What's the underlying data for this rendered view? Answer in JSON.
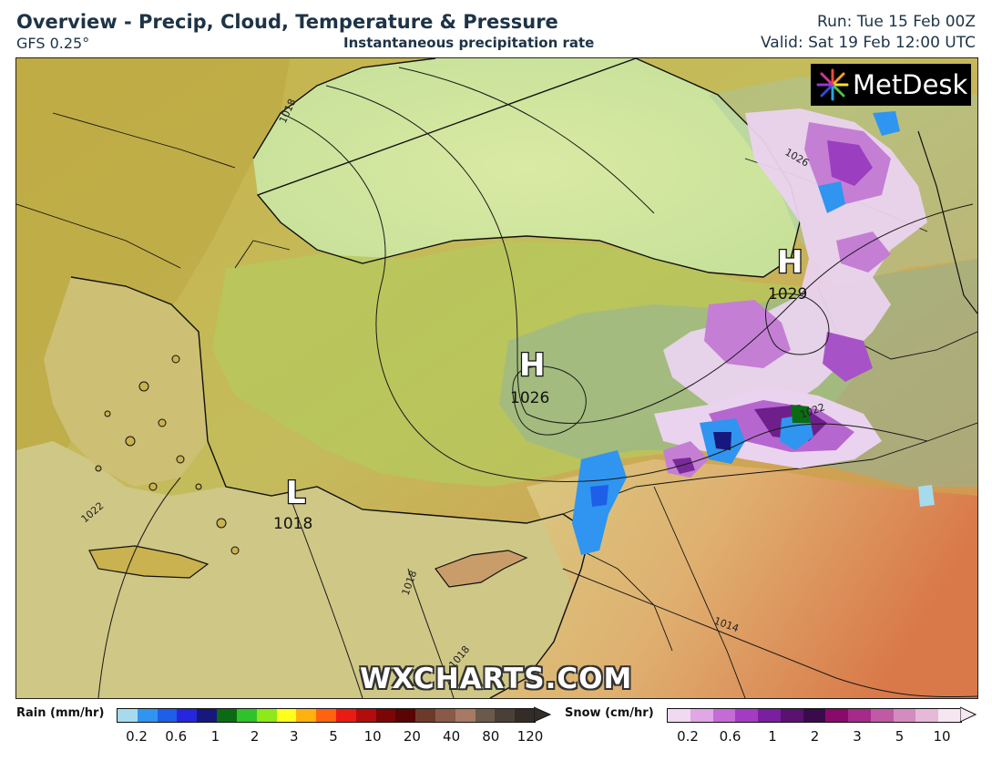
{
  "header": {
    "title": "Overview - Precip, Cloud, Temperature & Pressure",
    "model": "GFS 0.25°",
    "subtitle": "Instantaneous precipitation rate",
    "run": "Run: Tue 15 Feb 00Z",
    "valid": "Valid: Sat 19 Feb 12:00 UTC"
  },
  "map": {
    "pressure_centers": [
      {
        "type": "H",
        "value": "1026"
      },
      {
        "type": "H",
        "value": "1029"
      },
      {
        "type": "L",
        "value": "1018"
      }
    ],
    "isobar_labels": [
      "1018",
      "1026",
      "1022",
      "1022",
      "1018",
      "1018",
      "1014"
    ],
    "watermark": "WXCHARTS.COM",
    "logo": "MetDesk"
  },
  "legend": {
    "rain": {
      "label": "Rain (mm/hr)",
      "ticks": [
        "0.2",
        "0.6",
        "1",
        "2",
        "3",
        "5",
        "10",
        "20",
        "40",
        "80",
        "120"
      ],
      "colors": [
        "#a6dbee",
        "#2f95f0",
        "#1e5fe8",
        "#2626de",
        "#17187d",
        "#0b6b15",
        "#2fc22c",
        "#8ee81a",
        "#ffff1c",
        "#ffb20f",
        "#ff6310",
        "#ea1b14",
        "#b30c0c",
        "#7c0606",
        "#5a0404",
        "#6d3a2a",
        "#8a5a48",
        "#a67a64",
        "#6b5a4c",
        "#4b4038",
        "#332c28"
      ]
    },
    "snow": {
      "label": "Snow (cm/hr)",
      "ticks": [
        "0.2",
        "0.6",
        "1",
        "2",
        "3",
        "5",
        "10"
      ],
      "colors": [
        "#f2d9f2",
        "#e0a6e6",
        "#c46bd6",
        "#a33cc3",
        "#7a1f9f",
        "#5a1270",
        "#3a0b4a",
        "#8a0a6a",
        "#a52a8a",
        "#c05aa5",
        "#d48cc0",
        "#e6b9d9",
        "#f5e6f2"
      ]
    }
  }
}
